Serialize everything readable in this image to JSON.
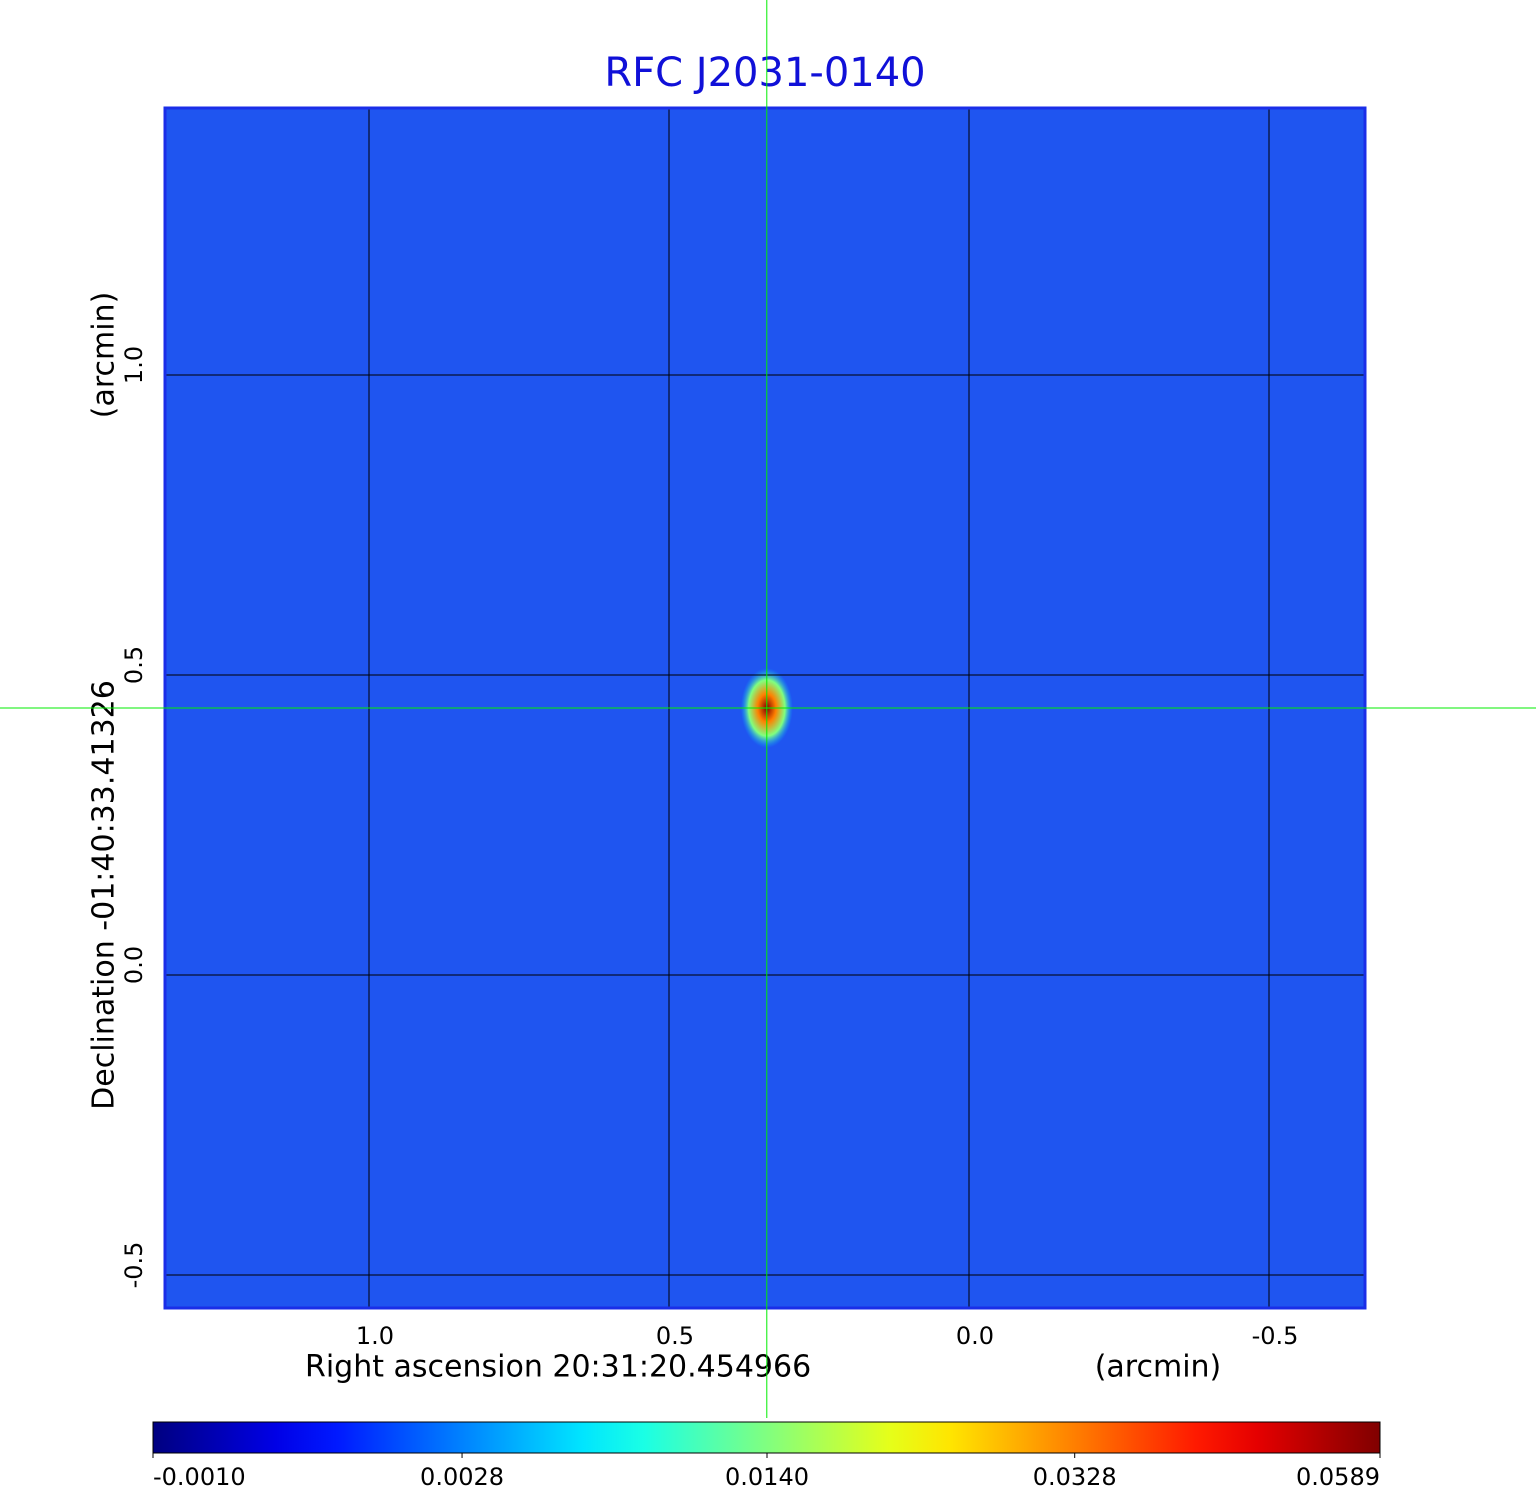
{
  "chart_data": {
    "type": "image",
    "title": "RFC J2031-0140",
    "title_color": "#1010d8",
    "xlabel": "Right ascension  20:31:20.454966",
    "xunit": "(arcmin)",
    "ylabel": "Declination  -01:40:33.41326",
    "yunit": "(arcmin)",
    "xlim": [
      1.34,
      -0.66
    ],
    "ylim": [
      -0.555,
      1.445
    ],
    "xticks": [
      {
        "value": 1,
        "label": "1.0"
      },
      0.5,
      {
        "value": 0,
        "label": "0.0"
      },
      -0.5
    ],
    "yticks": [
      {
        "value": 1,
        "label": "1.0"
      },
      0.5,
      {
        "value": 0,
        "label": "0.0"
      },
      -0.5
    ],
    "grid": true,
    "colormap": "jet",
    "colorbar_scale": "sqrt",
    "clim": [
      -0.001,
      0.0589
    ],
    "colorbar_ticks": [
      {
        "value": -0.001,
        "label": "-0.0010"
      },
      {
        "value": 0.0028,
        "label": "0.0028"
      },
      {
        "value": 0.014,
        "label": "0.0140"
      },
      {
        "value": 0.0328,
        "label": "0.0328"
      },
      {
        "value": 0.0589,
        "label": "0.0589"
      }
    ],
    "source": {
      "x": 0.337,
      "y": 0.445,
      "peak": 0.0589
    },
    "crosshair": {
      "x": 0.337,
      "y": 0.445,
      "color": "#00ee00"
    }
  }
}
